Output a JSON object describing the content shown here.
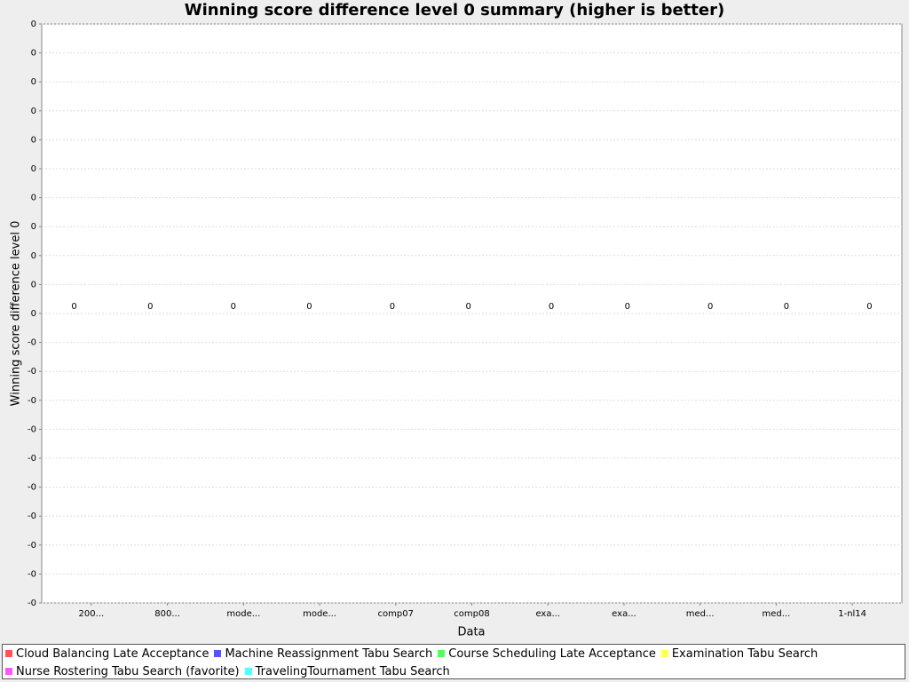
{
  "chart_data": {
    "type": "bar",
    "title": "Winning score difference level 0 summary (higher is better)",
    "x_label": "Data",
    "y_label": "Winning score difference level 0",
    "categories": [
      "200...",
      "800...",
      "mode...",
      "mode...",
      "comp07",
      "comp08",
      "exa...",
      "exa...",
      "med...",
      "med...",
      "1-nl14"
    ],
    "series": [
      {
        "name": "Cloud Balancing Late Acceptance",
        "color": "#ff5555",
        "values": [
          0,
          0,
          null,
          null,
          null,
          null,
          null,
          null,
          null,
          null,
          null
        ]
      },
      {
        "name": "Machine Reassignment Tabu Search",
        "color": "#5555ff",
        "values": [
          null,
          null,
          0,
          0,
          null,
          null,
          null,
          null,
          null,
          null,
          null
        ]
      },
      {
        "name": "Course Scheduling Late Acceptance",
        "color": "#55ff55",
        "values": [
          null,
          null,
          null,
          null,
          0,
          0,
          null,
          null,
          null,
          null,
          null
        ]
      },
      {
        "name": "Examination Tabu Search",
        "color": "#ffff55",
        "values": [
          null,
          null,
          null,
          null,
          null,
          null,
          0,
          0,
          null,
          null,
          null
        ]
      },
      {
        "name": "Nurse Rostering Tabu Search (favorite)",
        "color": "#ff55ff",
        "values": [
          null,
          null,
          null,
          null,
          null,
          null,
          null,
          null,
          0,
          0,
          null
        ]
      },
      {
        "name": "TravelingTournament Tabu Search",
        "color": "#55ffff",
        "values": [
          null,
          null,
          null,
          null,
          null,
          null,
          null,
          null,
          null,
          null,
          0
        ]
      }
    ],
    "ylim": [
      -0.05,
      0.05
    ],
    "yticks": [
      {
        "value": 0.05,
        "label": "0"
      },
      {
        "value": 0.045,
        "label": "0"
      },
      {
        "value": 0.04,
        "label": "0"
      },
      {
        "value": 0.035,
        "label": "0"
      },
      {
        "value": 0.03,
        "label": "0"
      },
      {
        "value": 0.025,
        "label": "0"
      },
      {
        "value": 0.02,
        "label": "0"
      },
      {
        "value": 0.015,
        "label": "0"
      },
      {
        "value": 0.01,
        "label": "0"
      },
      {
        "value": 0.005,
        "label": "0"
      },
      0,
      {
        "value": -0.005,
        "label": "-0"
      },
      {
        "value": -0.01,
        "label": "-0"
      },
      {
        "value": -0.015,
        "label": "-0"
      },
      {
        "value": -0.02,
        "label": "-0"
      },
      {
        "value": -0.025,
        "label": "-0"
      },
      {
        "value": -0.03,
        "label": "-0"
      },
      {
        "value": -0.035,
        "label": "-0"
      },
      {
        "value": -0.04,
        "label": "-0"
      },
      {
        "value": -0.045,
        "label": "-0"
      },
      {
        "value": -0.05,
        "label": "-0"
      }
    ],
    "grid": true
  }
}
